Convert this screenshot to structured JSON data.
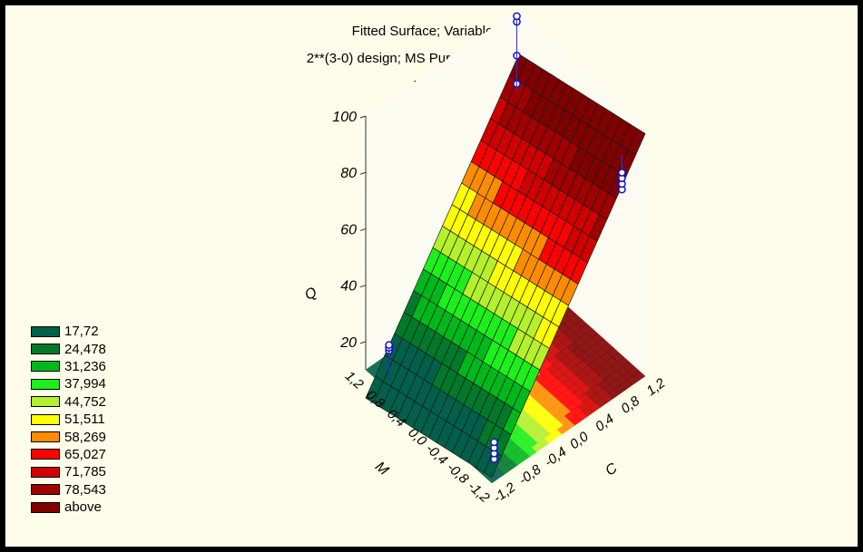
{
  "chart_data": {
    "type": "surface3d",
    "title": "Fitted Surface; Variable: Q",
    "subtitle": "2**(3-0) design; MS Pure Error=104,9874",
    "subtitle2": "DV: Q",
    "xlabel": "C",
    "ylabel": "M",
    "zlabel": "Q",
    "xlim": [
      -1.2,
      1.2
    ],
    "ylim": [
      -1.2,
      1.2
    ],
    "zlim": [
      10,
      100
    ],
    "x_ticks": [
      "-1,2",
      "-0,8",
      "-0,4",
      "0,0",
      "0,4",
      "0,8",
      "1,2"
    ],
    "y_ticks": [
      "-1,2",
      "-0,8",
      "-0,4",
      "0,0",
      "0,4",
      "0,8",
      "1,2"
    ],
    "z_ticks": [
      "20",
      "40",
      "60",
      "80",
      "100"
    ],
    "legend": {
      "entries": [
        {
          "label": "17,72",
          "color": "#00604a"
        },
        {
          "label": "24,478",
          "color": "#007a2a"
        },
        {
          "label": "31,236",
          "color": "#00b81c"
        },
        {
          "label": "37,994",
          "color": "#1cf01c"
        },
        {
          "label": "44,752",
          "color": "#b4f02c"
        },
        {
          "label": "51,511",
          "color": "#ffff00"
        },
        {
          "label": "58,269",
          "color": "#ff8c00"
        },
        {
          "label": "65,027",
          "color": "#ff0000"
        },
        {
          "label": "71,785",
          "color": "#d00000"
        },
        {
          "label": "78,543",
          "color": "#a00000"
        },
        {
          "label": "above",
          "color": "#800000"
        }
      ]
    },
    "surface_model": {
      "b0": 48,
      "bC": 35,
      "bM": -5
    },
    "points": [
      {
        "C": -1,
        "M": 1,
        "Q": 17
      },
      {
        "C": -1,
        "M": 1,
        "Q": 18
      },
      {
        "C": -1,
        "M": 1,
        "Q": 19
      },
      {
        "C": -1,
        "M": -1,
        "Q": 12
      },
      {
        "C": -1,
        "M": -1,
        "Q": 14
      },
      {
        "C": -1,
        "M": -1,
        "Q": 16
      },
      {
        "C": -1,
        "M": -1,
        "Q": 18
      },
      {
        "C": 1,
        "M": 1,
        "Q": 80
      },
      {
        "C": 1,
        "M": 1,
        "Q": 90
      },
      {
        "C": 1,
        "M": 1,
        "Q": 102
      },
      {
        "C": 1,
        "M": 1,
        "Q": 104
      },
      {
        "C": 1,
        "M": -1,
        "Q": 76
      },
      {
        "C": 1,
        "M": -1,
        "Q": 78
      },
      {
        "C": 1,
        "M": -1,
        "Q": 80
      },
      {
        "C": 1,
        "M": -1,
        "Q": 82
      }
    ]
  }
}
